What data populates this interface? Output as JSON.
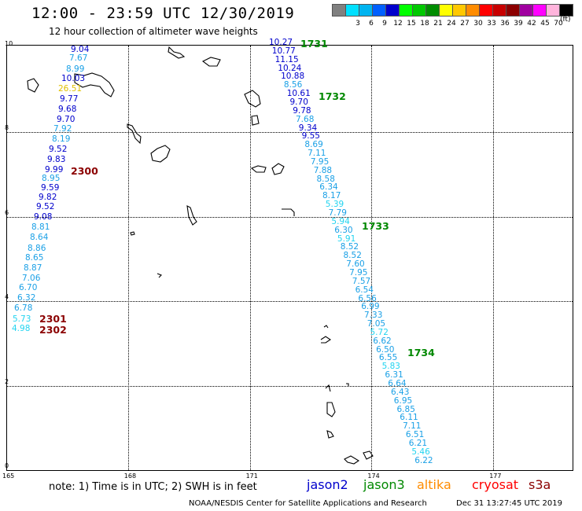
{
  "title": "12:00 - 23:59 UTC 12/30/2019",
  "subtitle": "12 hour collection of altimeter wave heights",
  "scale": {
    "unit": "(ft)",
    "bins": [
      {
        "label": "",
        "color": "#808080"
      },
      {
        "label": "3",
        "color": "#00e0ff"
      },
      {
        "label": "6",
        "color": "#00b4f0"
      },
      {
        "label": "9",
        "color": "#0060ff"
      },
      {
        "label": "12",
        "color": "#0000cc"
      },
      {
        "label": "15",
        "color": "#00ff00"
      },
      {
        "label": "18",
        "color": "#00c800"
      },
      {
        "label": "21",
        "color": "#008c00"
      },
      {
        "label": "24",
        "color": "#ffff00"
      },
      {
        "label": "27",
        "color": "#ffc800"
      },
      {
        "label": "30",
        "color": "#ff8c00"
      },
      {
        "label": "33",
        "color": "#ff0000"
      },
      {
        "label": "36",
        "color": "#c80000"
      },
      {
        "label": "39",
        "color": "#8c0000"
      },
      {
        "label": "42",
        "color": "#a000a0"
      },
      {
        "label": "45",
        "color": "#ff00ff"
      },
      {
        "label": "70",
        "color": "#ffb4dc"
      },
      {
        "label": "",
        "color": "#000000"
      }
    ]
  },
  "axes": {
    "lon_ticks": [
      "165",
      "168",
      "171",
      "174",
      "177"
    ],
    "lat_ticks": [
      "0",
      "2",
      "4",
      "6",
      "8",
      "10"
    ],
    "lon_range": [
      165,
      178.7
    ],
    "lat_range": [
      0,
      10
    ]
  },
  "tracks": {
    "west": {
      "color": "#1a1ae0",
      "values": [
        "9.04",
        "7.67",
        "8.99",
        "10.03",
        "26.51",
        "9.77",
        "9.68",
        "9.70",
        "7.92",
        "8.19",
        "9.52",
        "9.83",
        "9.99",
        "8.95",
        "9.59",
        "9.82",
        "9.52",
        "9.08",
        "8.81",
        "8.64",
        "8.86",
        "8.65",
        "8.87",
        "7.06",
        "6.70",
        "6.32",
        "6.78",
        "5.73",
        "4.98"
      ]
    },
    "east": {
      "values": [
        "10.27",
        "10.77",
        "11.15",
        "10.24",
        "10.88",
        "8.56",
        "10.61",
        "9.70",
        "9.78",
        "7.68",
        "9.34",
        "9.55",
        "8.69",
        "7.11",
        "7.95",
        "7.88",
        "8.58",
        "6.34",
        "8.17",
        "5.39",
        "7.79",
        "5.94",
        "6.30",
        "5.91",
        "8.52",
        "8.52",
        "7.60",
        "7.95",
        "7.57",
        "6.54",
        "6.56",
        "6.99",
        "7.33",
        "7.05",
        "5.72",
        "6.62",
        "6.50",
        "6.55",
        "5.83",
        "6.31",
        "6.64",
        "6.43",
        "6.95",
        "6.85",
        "6.11",
        "7.11",
        "6.51",
        "6.21",
        "5.46",
        "6.22"
      ]
    }
  },
  "time_labels": [
    {
      "text": "1731",
      "color": "#008800"
    },
    {
      "text": "1732",
      "color": "#008800"
    },
    {
      "text": "1733",
      "color": "#008800"
    },
    {
      "text": "1734",
      "color": "#008800"
    },
    {
      "text": "2300",
      "color": "#8b0000"
    },
    {
      "text": "2301",
      "color": "#8b0000"
    },
    {
      "text": "2302",
      "color": "#8b0000"
    }
  ],
  "note": "note: 1) Time is in UTC; 2) SWH is in feet",
  "legend": [
    {
      "name": "jason2",
      "color": "#0000cc"
    },
    {
      "name": "jason3",
      "color": "#008800"
    },
    {
      "name": "altika",
      "color": "#ff8c00"
    },
    {
      "name": "cryosat",
      "color": "#ff0000"
    },
    {
      "name": "s3a",
      "color": "#8b0000"
    }
  ],
  "credit": "NOAA/NESDIS Center for Satellite Applications and Research",
  "timestamp": "Dec 31 13:27:45 UTC 2019"
}
